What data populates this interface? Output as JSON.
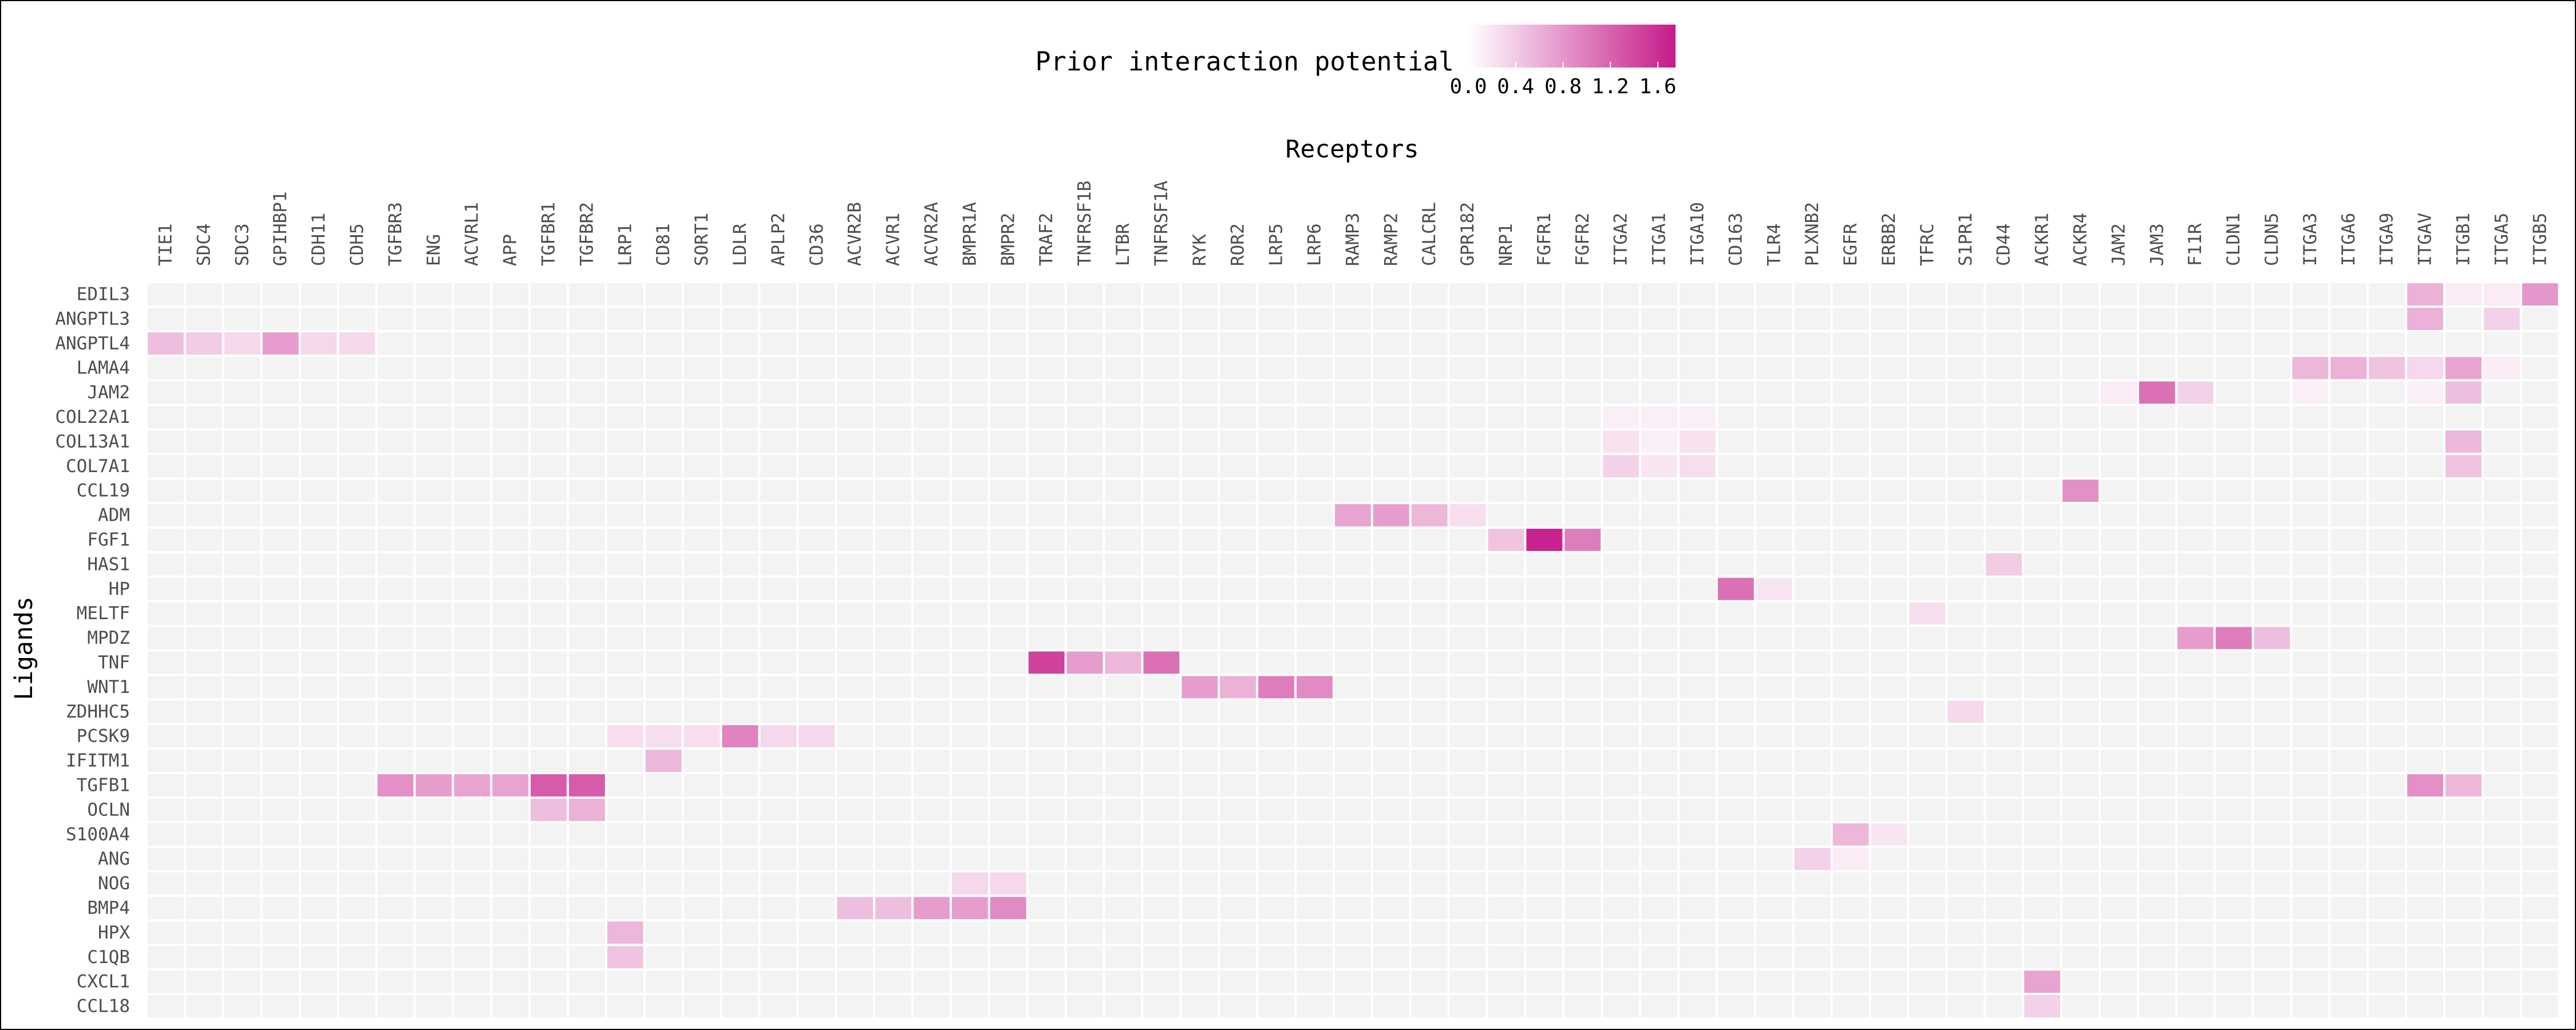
{
  "chart_data": {
    "type": "heatmap",
    "xlabel": "Receptors",
    "ylabel": "Ligands",
    "x": [
      "TIE1",
      "SDC4",
      "SDC3",
      "GPIHBP1",
      "CDH11",
      "CDH5",
      "TGFBR3",
      "ENG",
      "ACVRL1",
      "APP",
      "TGFBR1",
      "TGFBR2",
      "LRP1",
      "CD81",
      "SORT1",
      "LDLR",
      "APLP2",
      "CD36",
      "ACVR2B",
      "ACVR1",
      "ACVR2A",
      "BMPR1A",
      "BMPR2",
      "TRAF2",
      "TNFRSF1B",
      "LTBR",
      "TNFRSF1A",
      "RYK",
      "ROR2",
      "LRP5",
      "LRP6",
      "RAMP3",
      "RAMP2",
      "CALCRL",
      "GPR182",
      "NRP1",
      "FGFR1",
      "FGFR2",
      "ITGA2",
      "ITGA1",
      "ITGA10",
      "CD163",
      "TLR4",
      "PLXNB2",
      "EGFR",
      "ERBB2",
      "TFRC",
      "S1PR1",
      "CD44",
      "ACKR1",
      "ACKR4",
      "JAM2",
      "JAM3",
      "F11R",
      "CLDN1",
      "CLDN5",
      "ITGA3",
      "ITGA6",
      "ITGA9",
      "ITGAV",
      "ITGB1",
      "ITGA5",
      "ITGB5"
    ],
    "y": [
      "EDIL3",
      "ANGPTL3",
      "ANGPTL4",
      "LAMA4",
      "JAM2",
      "COL22A1",
      "COL13A1",
      "COL7A1",
      "CCL19",
      "ADM",
      "FGF1",
      "HAS1",
      "HP",
      "MELTF",
      "MPDZ",
      "TNF",
      "WNT1",
      "ZDHHC5",
      "PCSK9",
      "IFITM1",
      "TGFB1",
      "OCLN",
      "S100A4",
      "ANG",
      "NOG",
      "BMP4",
      "HPX",
      "C1QB",
      "CXCL1",
      "CCL18"
    ],
    "values": [
      [
        "EDIL3",
        "ITGAV",
        0.6
      ],
      [
        "EDIL3",
        "ITGB1",
        0.15
      ],
      [
        "EDIL3",
        "ITGA5",
        0.15
      ],
      [
        "EDIL3",
        "ITGB5",
        0.8
      ],
      [
        "ANGPTL3",
        "ITGAV",
        0.6
      ],
      [
        "ANGPTL3",
        "ITGA5",
        0.35
      ],
      [
        "ANGPTL4",
        "TIE1",
        0.5
      ],
      [
        "ANGPTL4",
        "SDC4",
        0.4
      ],
      [
        "ANGPTL4",
        "SDC3",
        0.3
      ],
      [
        "ANGPTL4",
        "GPIHBP1",
        0.75
      ],
      [
        "ANGPTL4",
        "CDH11",
        0.3
      ],
      [
        "ANGPTL4",
        "CDH5",
        0.3
      ],
      [
        "LAMA4",
        "ITGA3",
        0.55
      ],
      [
        "LAMA4",
        "ITGA6",
        0.6
      ],
      [
        "LAMA4",
        "ITGA9",
        0.45
      ],
      [
        "LAMA4",
        "ITGAV",
        0.3
      ],
      [
        "LAMA4",
        "ITGB1",
        0.7
      ],
      [
        "LAMA4",
        "ITGA5",
        0.15
      ],
      [
        "JAM2",
        "JAM2",
        0.15
      ],
      [
        "JAM2",
        "JAM3",
        1.1
      ],
      [
        "JAM2",
        "F11R",
        0.35
      ],
      [
        "JAM2",
        "ITGA3",
        0.12
      ],
      [
        "JAM2",
        "ITGAV",
        0.12
      ],
      [
        "JAM2",
        "ITGB1",
        0.5
      ],
      [
        "COL22A1",
        "ITGA2",
        0.12
      ],
      [
        "COL22A1",
        "ITGA1",
        0.12
      ],
      [
        "COL22A1",
        "ITGA10",
        0.12
      ],
      [
        "COL13A1",
        "ITGA2",
        0.22
      ],
      [
        "COL13A1",
        "ITGA1",
        0.12
      ],
      [
        "COL13A1",
        "ITGA10",
        0.22
      ],
      [
        "COL13A1",
        "ITGB1",
        0.55
      ],
      [
        "COL7A1",
        "ITGA2",
        0.35
      ],
      [
        "COL7A1",
        "ITGA1",
        0.2
      ],
      [
        "COL7A1",
        "ITGA10",
        0.25
      ],
      [
        "COL7A1",
        "ITGB1",
        0.45
      ],
      [
        "CCL19",
        "ACKR4",
        0.85
      ],
      [
        "ADM",
        "RAMP3",
        0.7
      ],
      [
        "ADM",
        "RAMP2",
        0.75
      ],
      [
        "ADM",
        "CALCRL",
        0.55
      ],
      [
        "ADM",
        "GPR182",
        0.25
      ],
      [
        "FGF1",
        "NRP1",
        0.45
      ],
      [
        "FGF1",
        "FGFR1",
        1.7
      ],
      [
        "FGF1",
        "FGFR2",
        1.0
      ],
      [
        "HAS1",
        "CD44",
        0.4
      ],
      [
        "HP",
        "CD163",
        1.1
      ],
      [
        "HP",
        "TLR4",
        0.2
      ],
      [
        "MELTF",
        "TFRC",
        0.25
      ],
      [
        "MPDZ",
        "F11R",
        0.75
      ],
      [
        "MPDZ",
        "CLDN1",
        1.0
      ],
      [
        "MPDZ",
        "CLDN5",
        0.5
      ],
      [
        "TNF",
        "TRAF2",
        1.45
      ],
      [
        "TNF",
        "TNFRSF1B",
        0.75
      ],
      [
        "TNF",
        "LTBR",
        0.55
      ],
      [
        "TNF",
        "TNFRSF1A",
        1.1
      ],
      [
        "WNT1",
        "RYK",
        0.75
      ],
      [
        "WNT1",
        "ROR2",
        0.6
      ],
      [
        "WNT1",
        "LRP5",
        1.0
      ],
      [
        "WNT1",
        "LRP6",
        0.9
      ],
      [
        "ZDHHC5",
        "S1PR1",
        0.3
      ],
      [
        "PCSK9",
        "LRP1",
        0.25
      ],
      [
        "PCSK9",
        "CD81",
        0.25
      ],
      [
        "PCSK9",
        "SORT1",
        0.25
      ],
      [
        "PCSK9",
        "LDLR",
        0.95
      ],
      [
        "PCSK9",
        "APLP2",
        0.3
      ],
      [
        "PCSK9",
        "CD36",
        0.3
      ],
      [
        "IFITM1",
        "CD81",
        0.55
      ],
      [
        "TGFB1",
        "TGFBR3",
        0.85
      ],
      [
        "TGFB1",
        "ENG",
        0.75
      ],
      [
        "TGFB1",
        "ACVRL1",
        0.7
      ],
      [
        "TGFB1",
        "APP",
        0.7
      ],
      [
        "TGFB1",
        "TGFBR1",
        1.25
      ],
      [
        "TGFB1",
        "TGFBR2",
        1.25
      ],
      [
        "TGFB1",
        "ITGAV",
        0.85
      ],
      [
        "TGFB1",
        "ITGB1",
        0.55
      ],
      [
        "OCLN",
        "TGFBR1",
        0.5
      ],
      [
        "OCLN",
        "TGFBR2",
        0.6
      ],
      [
        "S100A4",
        "EGFR",
        0.55
      ],
      [
        "S100A4",
        "ERBB2",
        0.2
      ],
      [
        "ANG",
        "PLXNB2",
        0.35
      ],
      [
        "ANG",
        "EGFR",
        0.15
      ],
      [
        "NOG",
        "BMPR1A",
        0.3
      ],
      [
        "NOG",
        "BMPR2",
        0.3
      ],
      [
        "BMP4",
        "ACVR2B",
        0.5
      ],
      [
        "BMP4",
        "ACVR1",
        0.5
      ],
      [
        "BMP4",
        "ACVR2A",
        0.75
      ],
      [
        "BMP4",
        "BMPR1A",
        0.75
      ],
      [
        "BMP4",
        "BMPR2",
        0.9
      ],
      [
        "HPX",
        "LRP1",
        0.55
      ],
      [
        "C1QB",
        "LRP1",
        0.45
      ],
      [
        "CXCL1",
        "ACKR1",
        0.7
      ],
      [
        "CCL18",
        "ACKR1",
        0.35
      ]
    ],
    "legend": {
      "title": "Prior interaction potential",
      "ticks": [
        "0.0",
        "0.4",
        "0.8",
        "1.2",
        "1.6"
      ],
      "range": [
        0,
        1.75
      ],
      "low_color": "#ffffff",
      "high_color": "#c51b8a",
      "empty_color": "#f3f3f3",
      "position": "top-center"
    }
  }
}
